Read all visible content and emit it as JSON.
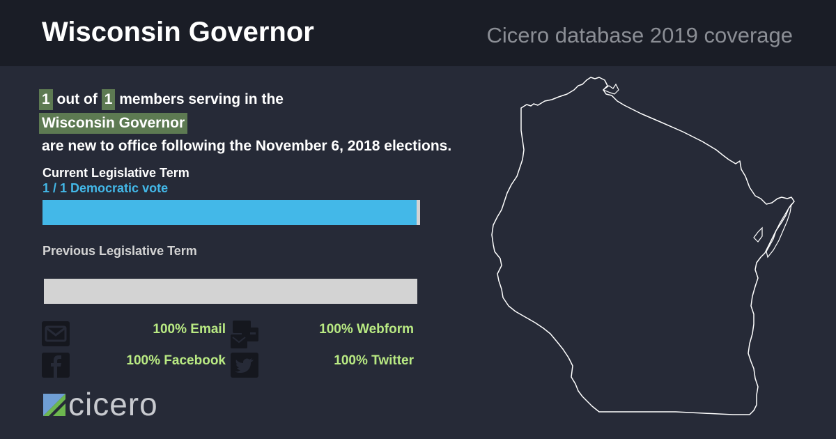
{
  "header": {
    "title": "Wisconsin Governor",
    "subtitle": "Cicero database 2019 coverage"
  },
  "summary": {
    "new_count": "1",
    "out_of": "out of",
    "total_count": "1",
    "line1_suffix": "members serving in the",
    "body_name": "Wisconsin Governor",
    "line3": "are new to office following the November 6, 2018 elections."
  },
  "current_term": {
    "label": "Current Legislative Term",
    "vote_text": "1 / 1 Democratic vote",
    "democratic_fraction": 1.0,
    "bar_color": "#43b8e8"
  },
  "previous_term": {
    "label": "Previous Legislative Term",
    "bar_color": "#d3d3d3"
  },
  "contact_stats": [
    {
      "icon": "email-icon",
      "text": "100% Email"
    },
    {
      "icon": "webform-icon",
      "text": "100% Webform"
    },
    {
      "icon": "facebook-icon",
      "text": "100% Facebook"
    },
    {
      "icon": "twitter-icon",
      "text": "100% Twitter"
    }
  ],
  "logo": {
    "text": "cicero"
  },
  "colors": {
    "background": "#262a37",
    "header": "#1a1d26",
    "highlight": "#5d7a52",
    "stat_text": "#b9ea83",
    "democratic": "#43b8e8"
  }
}
